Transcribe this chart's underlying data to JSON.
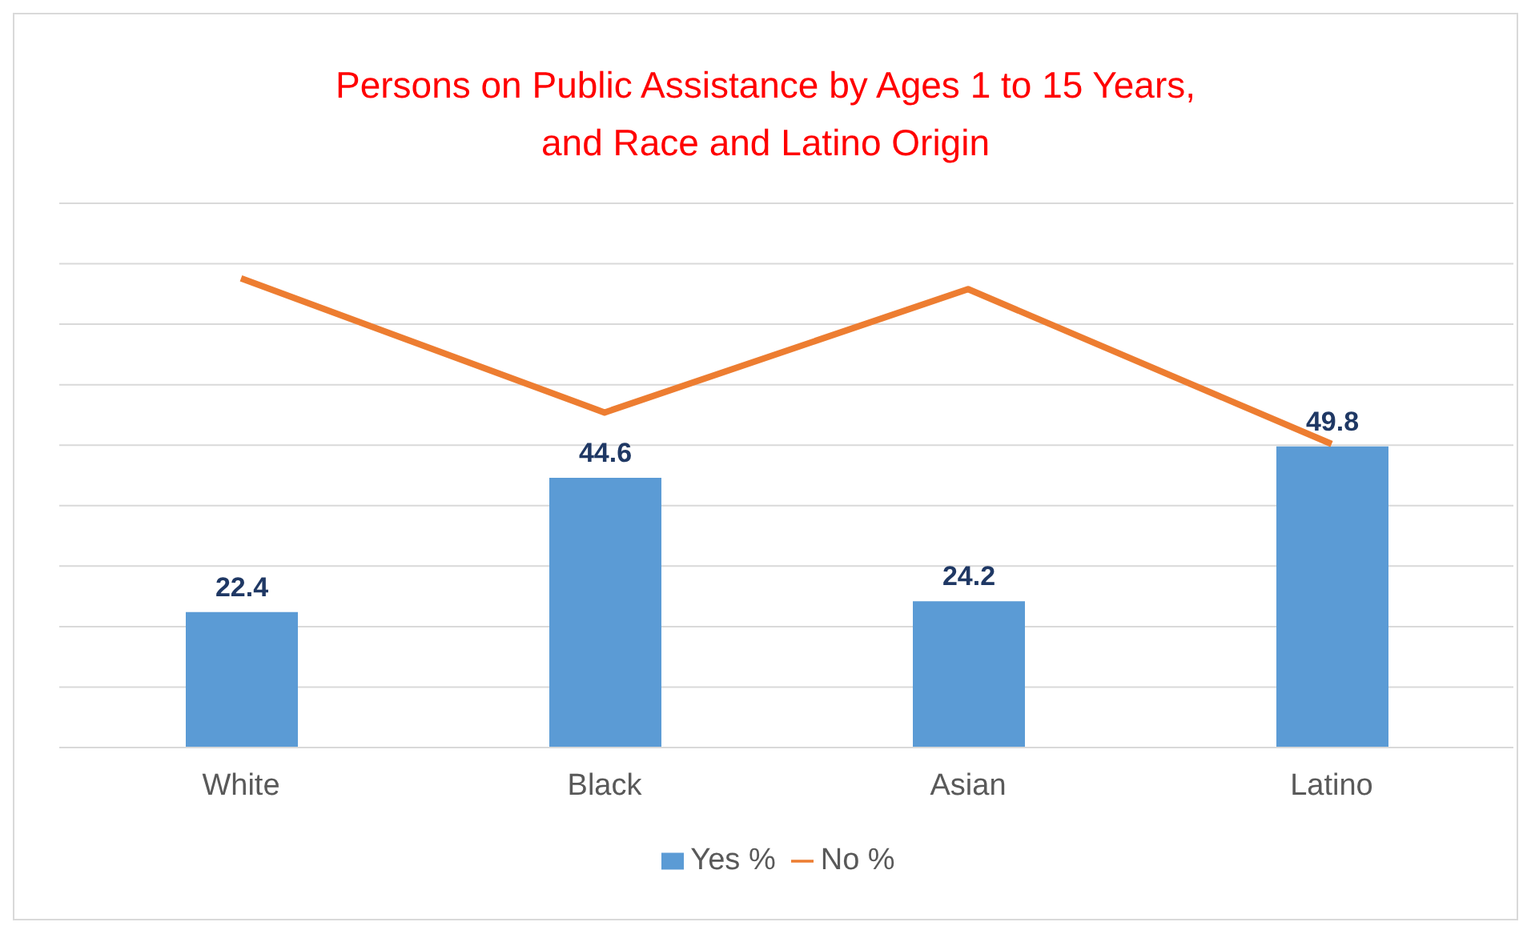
{
  "chart_data": {
    "type": "bar",
    "title": "Persons on Public Assistance by Ages 1 to 15 Years,\nand Race and Latino Origin",
    "categories": [
      "White",
      "Black",
      "Asian",
      "Latino"
    ],
    "series": [
      {
        "name": "Yes %",
        "color": "#5b9bd5",
        "values": [
          22.4,
          44.6,
          24.2,
          49.8
        ],
        "value_labels": [
          "22.4",
          "44.6",
          "24.2",
          "49.8"
        ]
      },
      {
        "name": "No %",
        "type": "line",
        "color": "#ed7d31",
        "values": [
          77.6,
          55.4,
          75.8,
          50.2
        ]
      }
    ],
    "ylim": [
      0,
      90
    ],
    "yticks": [
      {
        "value": 0,
        "label": null
      },
      {
        "value": 10,
        "label": null
      },
      {
        "value": 20,
        "label": null
      },
      {
        "value": 30,
        "label": null
      },
      {
        "value": 40,
        "label": null
      },
      {
        "value": 50,
        "label": null
      },
      {
        "value": 60,
        "label": null
      },
      {
        "value": 70,
        "label": null
      },
      {
        "value": 80,
        "label": null
      },
      {
        "value": 90,
        "label": null
      }
    ],
    "tick_labels": "x",
    "grid": "y",
    "legend": "bottom",
    "marker": "none"
  }
}
